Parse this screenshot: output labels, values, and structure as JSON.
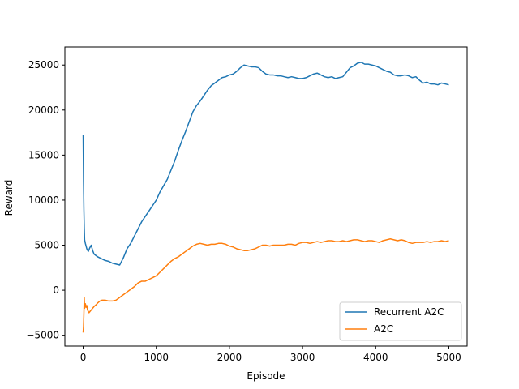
{
  "chart_data": {
    "type": "line",
    "title": "",
    "xlabel": "Episode",
    "ylabel": "Reward",
    "xlim": [
      -250,
      5250
    ],
    "ylim": [
      -6200,
      27000
    ],
    "xticks": [
      0,
      1000,
      2000,
      3000,
      4000,
      5000
    ],
    "yticks": [
      -5000,
      0,
      5000,
      10000,
      15000,
      20000,
      25000
    ],
    "xtick_labels": [
      "0",
      "1000",
      "2000",
      "3000",
      "4000",
      "5000"
    ],
    "ytick_labels": [
      "−5000",
      "0",
      "5000",
      "10000",
      "15000",
      "20000",
      "25000"
    ],
    "grid": false,
    "legend_position": "lower right",
    "series": [
      {
        "name": "Recurrent A2C",
        "color": "#1f77b4",
        "points": [
          [
            0,
            17200
          ],
          [
            5,
            12000
          ],
          [
            10,
            9000
          ],
          [
            15,
            7000
          ],
          [
            20,
            5600
          ],
          [
            30,
            5200
          ],
          [
            50,
            4600
          ],
          [
            70,
            4300
          ],
          [
            90,
            4700
          ],
          [
            110,
            5000
          ],
          [
            130,
            4400
          ],
          [
            150,
            4000
          ],
          [
            200,
            3700
          ],
          [
            250,
            3500
          ],
          [
            300,
            3300
          ],
          [
            350,
            3200
          ],
          [
            400,
            3000
          ],
          [
            450,
            2900
          ],
          [
            500,
            2800
          ],
          [
            550,
            3600
          ],
          [
            600,
            4600
          ],
          [
            650,
            5200
          ],
          [
            700,
            6000
          ],
          [
            750,
            6800
          ],
          [
            800,
            7600
          ],
          [
            850,
            8200
          ],
          [
            900,
            8800
          ],
          [
            950,
            9400
          ],
          [
            1000,
            10000
          ],
          [
            1050,
            10900
          ],
          [
            1100,
            11600
          ],
          [
            1150,
            12300
          ],
          [
            1200,
            13300
          ],
          [
            1250,
            14300
          ],
          [
            1300,
            15500
          ],
          [
            1350,
            16600
          ],
          [
            1400,
            17600
          ],
          [
            1450,
            18700
          ],
          [
            1500,
            19800
          ],
          [
            1550,
            20500
          ],
          [
            1600,
            21000
          ],
          [
            1650,
            21600
          ],
          [
            1700,
            22200
          ],
          [
            1750,
            22700
          ],
          [
            1800,
            23000
          ],
          [
            1850,
            23300
          ],
          [
            1900,
            23600
          ],
          [
            1950,
            23700
          ],
          [
            2000,
            23900
          ],
          [
            2050,
            24000
          ],
          [
            2100,
            24300
          ],
          [
            2150,
            24700
          ],
          [
            2200,
            25000
          ],
          [
            2250,
            24900
          ],
          [
            2300,
            24800
          ],
          [
            2350,
            24800
          ],
          [
            2400,
            24700
          ],
          [
            2450,
            24300
          ],
          [
            2500,
            24000
          ],
          [
            2550,
            23900
          ],
          [
            2600,
            23900
          ],
          [
            2650,
            23800
          ],
          [
            2700,
            23800
          ],
          [
            2750,
            23700
          ],
          [
            2800,
            23600
          ],
          [
            2850,
            23700
          ],
          [
            2900,
            23600
          ],
          [
            2950,
            23500
          ],
          [
            3000,
            23500
          ],
          [
            3050,
            23600
          ],
          [
            3100,
            23800
          ],
          [
            3150,
            24000
          ],
          [
            3200,
            24100
          ],
          [
            3250,
            23900
          ],
          [
            3300,
            23700
          ],
          [
            3350,
            23600
          ],
          [
            3400,
            23700
          ],
          [
            3450,
            23500
          ],
          [
            3500,
            23600
          ],
          [
            3550,
            23700
          ],
          [
            3600,
            24200
          ],
          [
            3650,
            24700
          ],
          [
            3700,
            24900
          ],
          [
            3750,
            25200
          ],
          [
            3800,
            25300
          ],
          [
            3850,
            25100
          ],
          [
            3900,
            25100
          ],
          [
            3950,
            25000
          ],
          [
            4000,
            24900
          ],
          [
            4050,
            24700
          ],
          [
            4100,
            24500
          ],
          [
            4150,
            24300
          ],
          [
            4200,
            24200
          ],
          [
            4250,
            23900
          ],
          [
            4300,
            23800
          ],
          [
            4350,
            23800
          ],
          [
            4400,
            23900
          ],
          [
            4450,
            23800
          ],
          [
            4500,
            23600
          ],
          [
            4550,
            23700
          ],
          [
            4600,
            23300
          ],
          [
            4650,
            23000
          ],
          [
            4700,
            23100
          ],
          [
            4750,
            22900
          ],
          [
            4800,
            22900
          ],
          [
            4850,
            22800
          ],
          [
            4900,
            23000
          ],
          [
            4950,
            22900
          ],
          [
            5000,
            22800
          ]
        ]
      },
      {
        "name": "A2C",
        "color": "#ff7f0e",
        "points": [
          [
            0,
            -4700
          ],
          [
            5,
            -4000
          ],
          [
            10,
            -2600
          ],
          [
            15,
            -800
          ],
          [
            20,
            -2000
          ],
          [
            30,
            -1500
          ],
          [
            40,
            -1900
          ],
          [
            50,
            -1700
          ],
          [
            60,
            -2200
          ],
          [
            80,
            -2500
          ],
          [
            100,
            -2300
          ],
          [
            120,
            -2100
          ],
          [
            150,
            -1800
          ],
          [
            180,
            -1600
          ],
          [
            200,
            -1400
          ],
          [
            230,
            -1200
          ],
          [
            260,
            -1100
          ],
          [
            300,
            -1100
          ],
          [
            350,
            -1200
          ],
          [
            400,
            -1200
          ],
          [
            450,
            -1100
          ],
          [
            500,
            -800
          ],
          [
            550,
            -500
          ],
          [
            600,
            -200
          ],
          [
            650,
            100
          ],
          [
            700,
            400
          ],
          [
            750,
            800
          ],
          [
            800,
            1000
          ],
          [
            850,
            1000
          ],
          [
            900,
            1200
          ],
          [
            950,
            1400
          ],
          [
            1000,
            1600
          ],
          [
            1050,
            2000
          ],
          [
            1100,
            2400
          ],
          [
            1150,
            2800
          ],
          [
            1200,
            3200
          ],
          [
            1250,
            3500
          ],
          [
            1300,
            3700
          ],
          [
            1350,
            4000
          ],
          [
            1400,
            4300
          ],
          [
            1450,
            4600
          ],
          [
            1500,
            4900
          ],
          [
            1550,
            5100
          ],
          [
            1600,
            5200
          ],
          [
            1650,
            5100
          ],
          [
            1700,
            5000
          ],
          [
            1750,
            5100
          ],
          [
            1800,
            5100
          ],
          [
            1850,
            5200
          ],
          [
            1900,
            5200
          ],
          [
            1950,
            5100
          ],
          [
            2000,
            4900
          ],
          [
            2050,
            4800
          ],
          [
            2100,
            4600
          ],
          [
            2150,
            4500
          ],
          [
            2200,
            4400
          ],
          [
            2250,
            4400
          ],
          [
            2300,
            4500
          ],
          [
            2350,
            4600
          ],
          [
            2400,
            4800
          ],
          [
            2450,
            5000
          ],
          [
            2500,
            5000
          ],
          [
            2550,
            4900
          ],
          [
            2600,
            5000
          ],
          [
            2650,
            5000
          ],
          [
            2700,
            5000
          ],
          [
            2750,
            5000
          ],
          [
            2800,
            5100
          ],
          [
            2850,
            5100
          ],
          [
            2900,
            5000
          ],
          [
            2950,
            5200
          ],
          [
            3000,
            5300
          ],
          [
            3050,
            5300
          ],
          [
            3100,
            5200
          ],
          [
            3150,
            5300
          ],
          [
            3200,
            5400
          ],
          [
            3250,
            5300
          ],
          [
            3300,
            5400
          ],
          [
            3350,
            5500
          ],
          [
            3400,
            5500
          ],
          [
            3450,
            5400
          ],
          [
            3500,
            5400
          ],
          [
            3550,
            5500
          ],
          [
            3600,
            5400
          ],
          [
            3650,
            5500
          ],
          [
            3700,
            5600
          ],
          [
            3750,
            5600
          ],
          [
            3800,
            5500
          ],
          [
            3850,
            5400
          ],
          [
            3900,
            5500
          ],
          [
            3950,
            5500
          ],
          [
            4000,
            5400
          ],
          [
            4050,
            5300
          ],
          [
            4100,
            5500
          ],
          [
            4150,
            5600
          ],
          [
            4200,
            5700
          ],
          [
            4250,
            5600
          ],
          [
            4300,
            5500
          ],
          [
            4350,
            5600
          ],
          [
            4400,
            5500
          ],
          [
            4450,
            5300
          ],
          [
            4500,
            5200
          ],
          [
            4550,
            5300
          ],
          [
            4600,
            5300
          ],
          [
            4650,
            5300
          ],
          [
            4700,
            5400
          ],
          [
            4750,
            5300
          ],
          [
            4800,
            5400
          ],
          [
            4850,
            5400
          ],
          [
            4900,
            5500
          ],
          [
            4950,
            5400
          ],
          [
            5000,
            5500
          ]
        ]
      }
    ]
  }
}
